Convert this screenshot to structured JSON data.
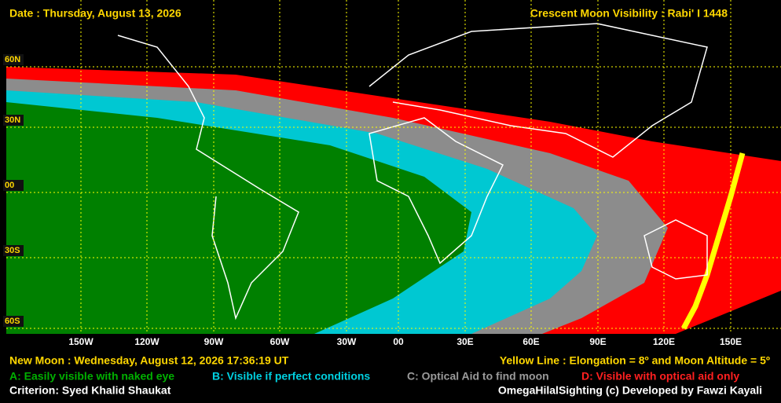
{
  "header": {
    "date": "Date : Thursday, August 13, 2026",
    "title": "Crescent Moon Visibility : Rabi' I  1448"
  },
  "map": {
    "lat_labels": [
      "60N",
      "30N",
      "00",
      "30S",
      "60S"
    ],
    "lon_labels": [
      "150W",
      "120W",
      "90W",
      "60W",
      "30W",
      "00",
      "30E",
      "60E",
      "90E",
      "120E",
      "150E"
    ]
  },
  "footer": {
    "new_moon": "New Moon : Wednesday, August 12, 2026  17:36:19  UT",
    "yellow_line": "Yellow Line : Elongation = 8º  and Moon Altitude = 5º",
    "legend": [
      "A: Easily visible with naked eye",
      "B: Visible if perfect conditions",
      "C: Optical Aid to find moon",
      "D: Visible with optical aid only"
    ],
    "criterion": "Criterion: Syed Khalid Shaukat",
    "credit": "OmegaHilalSighting  (c)  Developed by Fawzi Kayali"
  }
}
